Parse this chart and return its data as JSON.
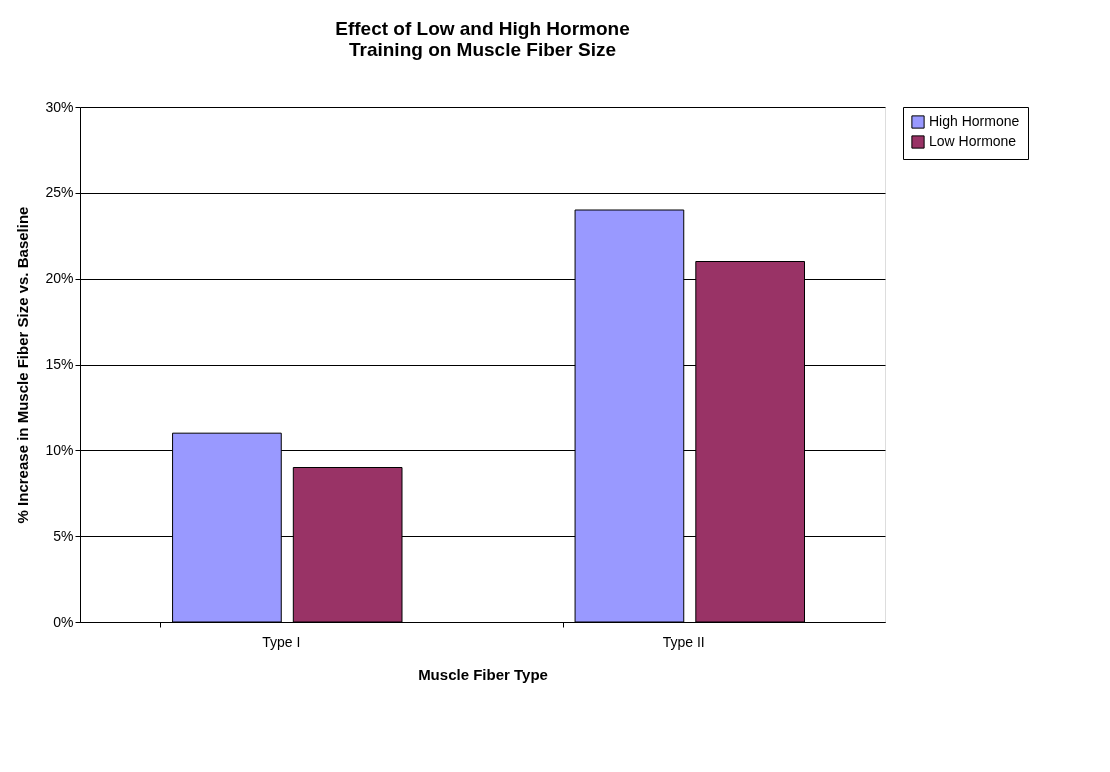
{
  "chart_data": {
    "type": "bar",
    "title": "Effect of Low and High Hormone Training on Muscle Fiber Size",
    "xlabel": "Muscle Fiber Type",
    "ylabel": "% Increase in Muscle Fiber Size vs. Baseline",
    "categories": [
      "Type I",
      "Type II"
    ],
    "series": [
      {
        "name": "High Hormone",
        "color": "#9999ff",
        "values": [
          11,
          24
        ]
      },
      {
        "name": "Low Hormone",
        "color": "#993366",
        "values": [
          9,
          21
        ]
      }
    ],
    "ylim": [
      0,
      30
    ],
    "yticks": [
      {
        "value": 0,
        "label": "0%"
      },
      {
        "value": 5,
        "label": "5%"
      },
      {
        "value": 10,
        "label": "10%"
      },
      {
        "value": 15,
        "label": "15%"
      },
      {
        "value": 20,
        "label": "20%"
      },
      {
        "value": 25,
        "label": "25%"
      },
      {
        "value": 30,
        "label": "30%"
      }
    ],
    "grid": "y",
    "legend": "right"
  }
}
